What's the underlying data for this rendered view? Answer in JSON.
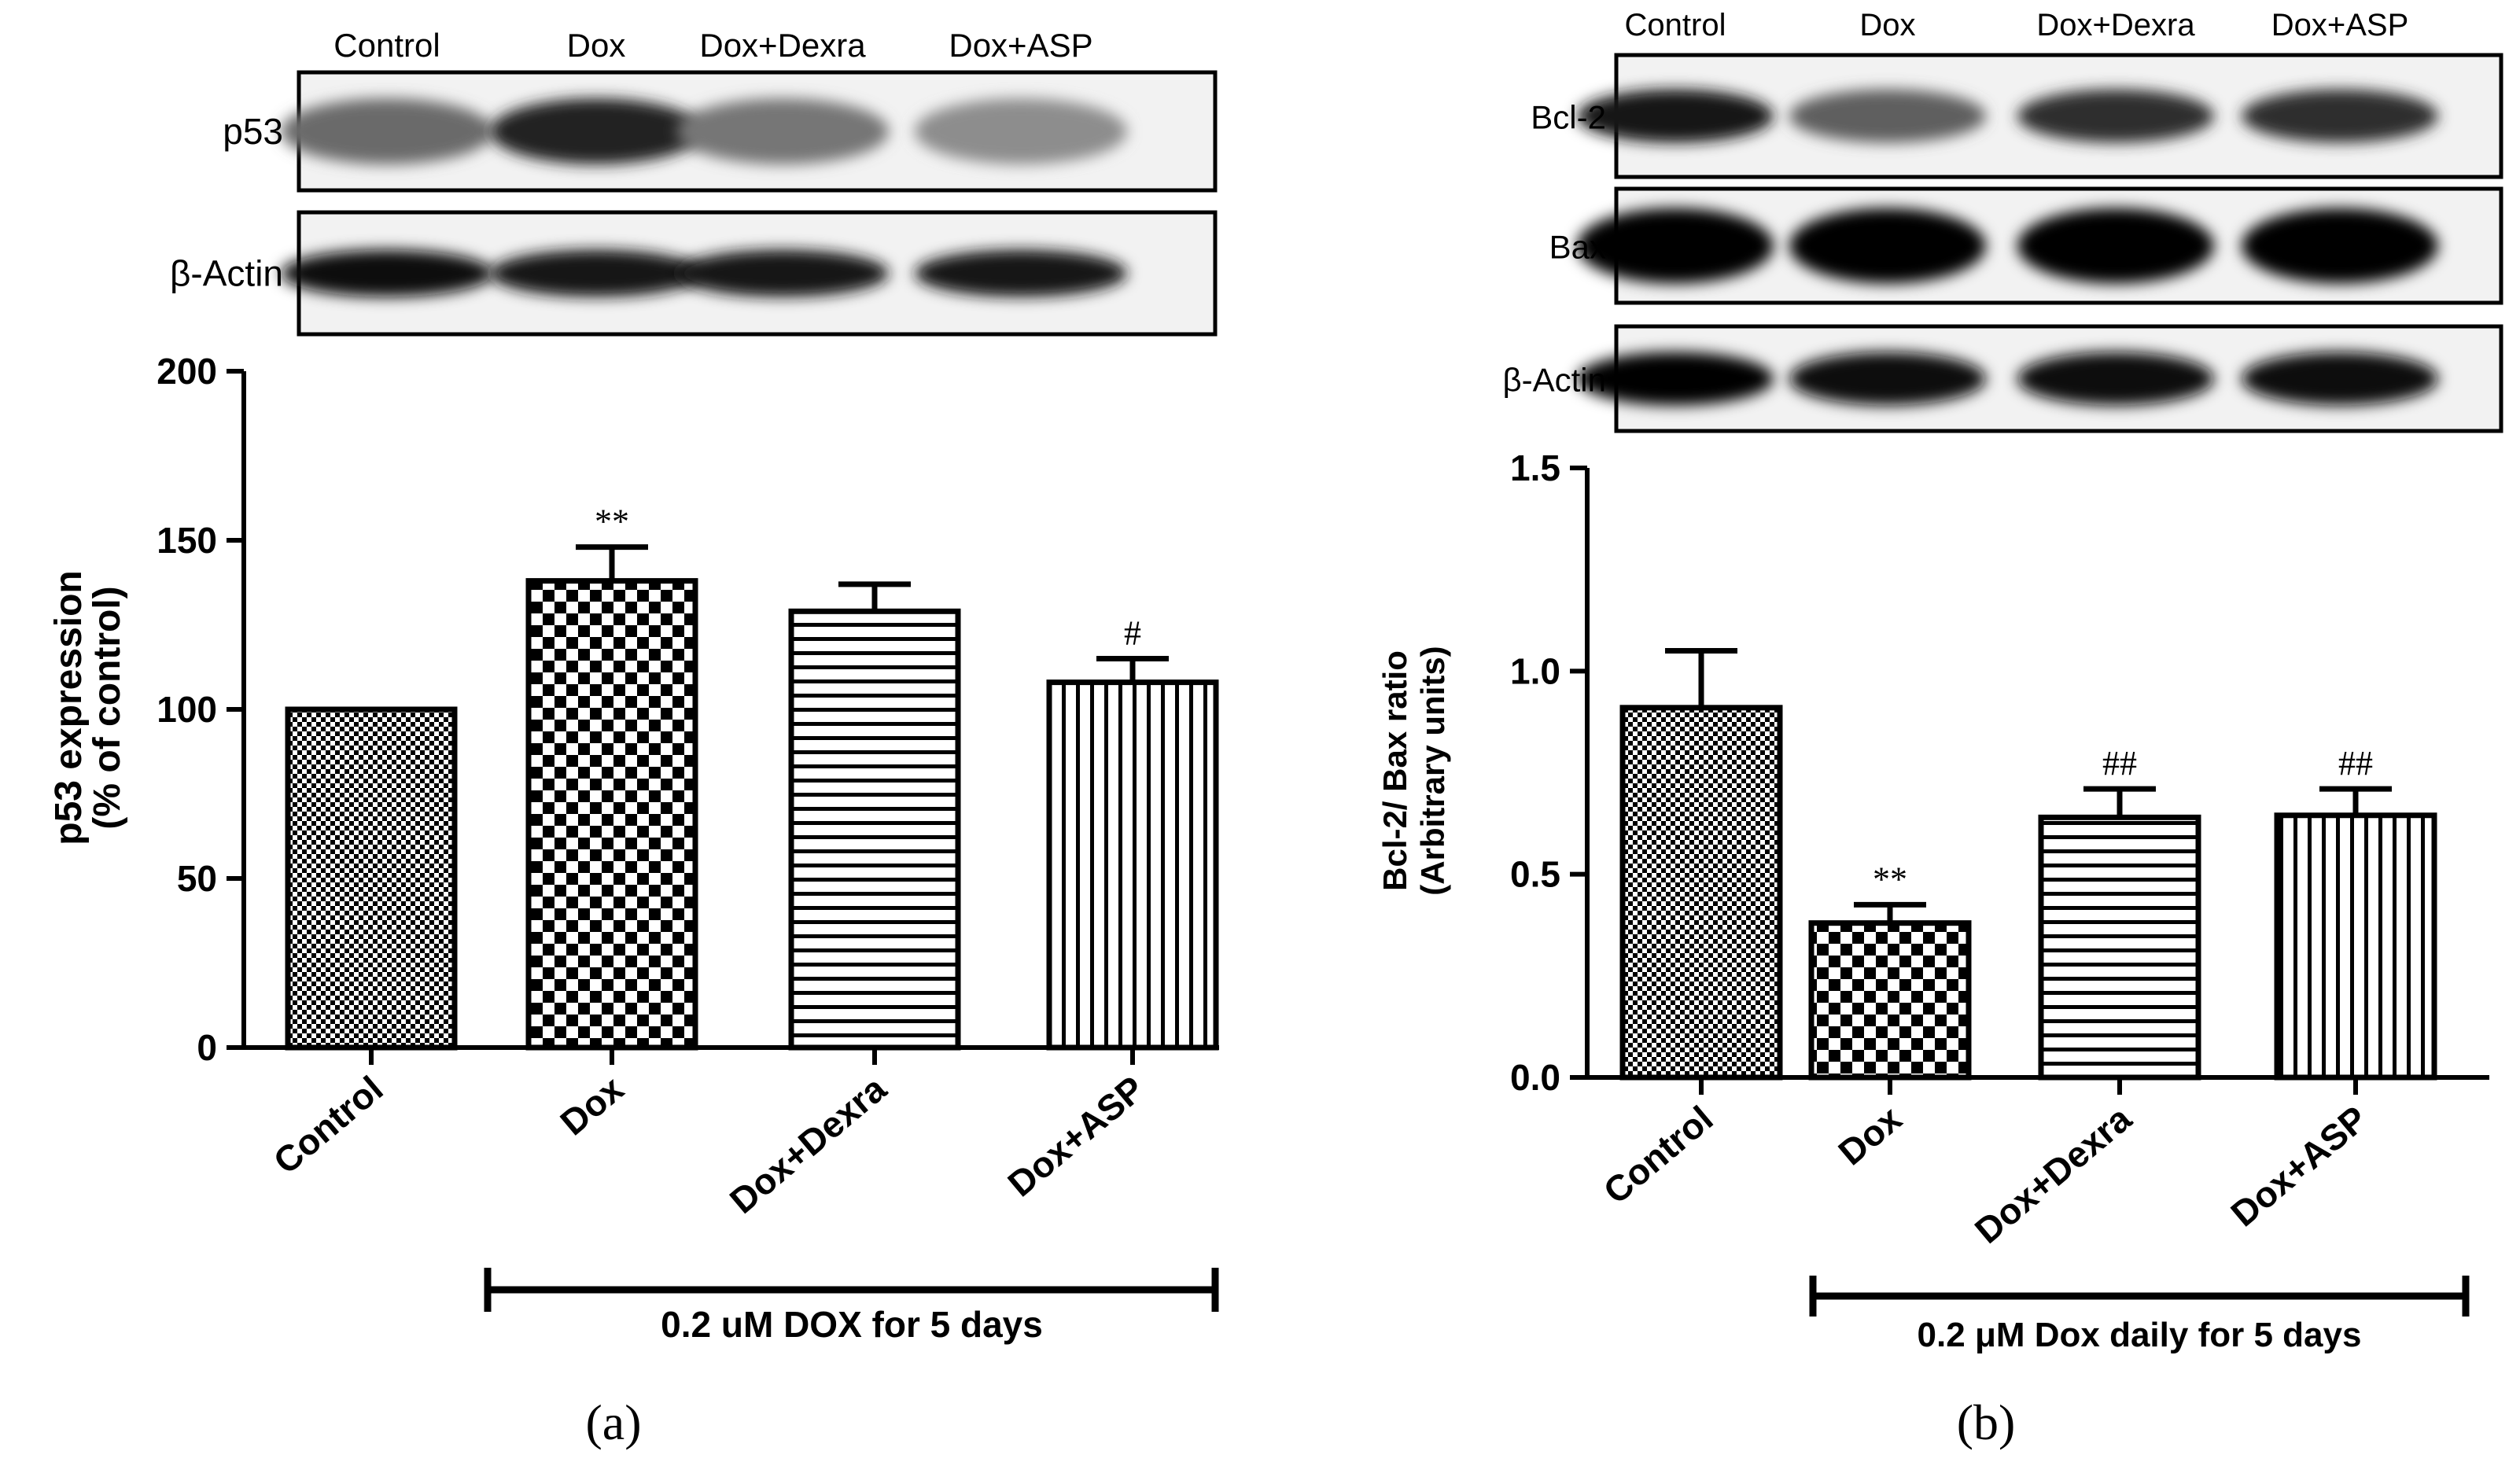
{
  "panel_a": {
    "letter": "(a)",
    "blot": {
      "lanes": [
        "Control",
        "Dox",
        "Dox+Dexra",
        "Dox+ASP"
      ],
      "rows": [
        {
          "label": "p53",
          "intensity": [
            0.55,
            0.85,
            0.5,
            0.4
          ]
        },
        {
          "label": "β-Actin",
          "intensity": [
            0.95,
            0.9,
            0.9,
            0.9
          ]
        }
      ]
    },
    "treatment_label": "0.2 uM DOX for 5 days"
  },
  "panel_b": {
    "letter": "(b)",
    "blot": {
      "lanes": [
        "Control",
        "Dox",
        "Dox+Dexra",
        "Dox+ASP"
      ],
      "rows": [
        {
          "label": "Bcl-2",
          "intensity": [
            0.9,
            0.6,
            0.8,
            0.8
          ]
        },
        {
          "label": "Bax",
          "intensity": [
            1.0,
            1.0,
            1.0,
            1.0
          ]
        },
        {
          "label": "β-Actin",
          "intensity": [
            1.0,
            0.95,
            0.95,
            0.95
          ]
        }
      ]
    },
    "treatment_label": "0.2 μM Dox daily for 5 days"
  },
  "chart_data": [
    {
      "type": "bar",
      "categories": [
        "Control",
        "Dox",
        "Dox+Dexra",
        "Dox+ASP"
      ],
      "values": [
        100,
        138,
        129,
        108
      ],
      "errors": [
        0,
        10,
        8,
        7
      ],
      "annotations": [
        "",
        "**",
        "",
        "#"
      ],
      "patterns": [
        "fine-check",
        "coarse-check",
        "horizontal-lines",
        "vertical-lines"
      ],
      "ylabel": "p53 expression",
      "ylabel2": "(% of control)",
      "ylim": [
        0,
        200
      ],
      "yticks": [
        0,
        50,
        100,
        150,
        200
      ]
    },
    {
      "type": "bar",
      "categories": [
        "Control",
        "Dox",
        "Dox+Dexra",
        "Dox+ASP"
      ],
      "values": [
        0.91,
        0.38,
        0.64,
        0.645
      ],
      "errors": [
        0.14,
        0.045,
        0.07,
        0.065
      ],
      "annotations": [
        "",
        "**",
        "##",
        "##"
      ],
      "patterns": [
        "fine-check",
        "coarse-check",
        "horizontal-lines",
        "vertical-lines"
      ],
      "ylabel": "Bcl-2/ Bax ratio",
      "ylabel2": "(Arbitrary units)",
      "ylim": [
        0,
        1.5
      ],
      "yticks": [
        "0.0",
        "0.5",
        "1.0",
        "1.5"
      ]
    }
  ]
}
